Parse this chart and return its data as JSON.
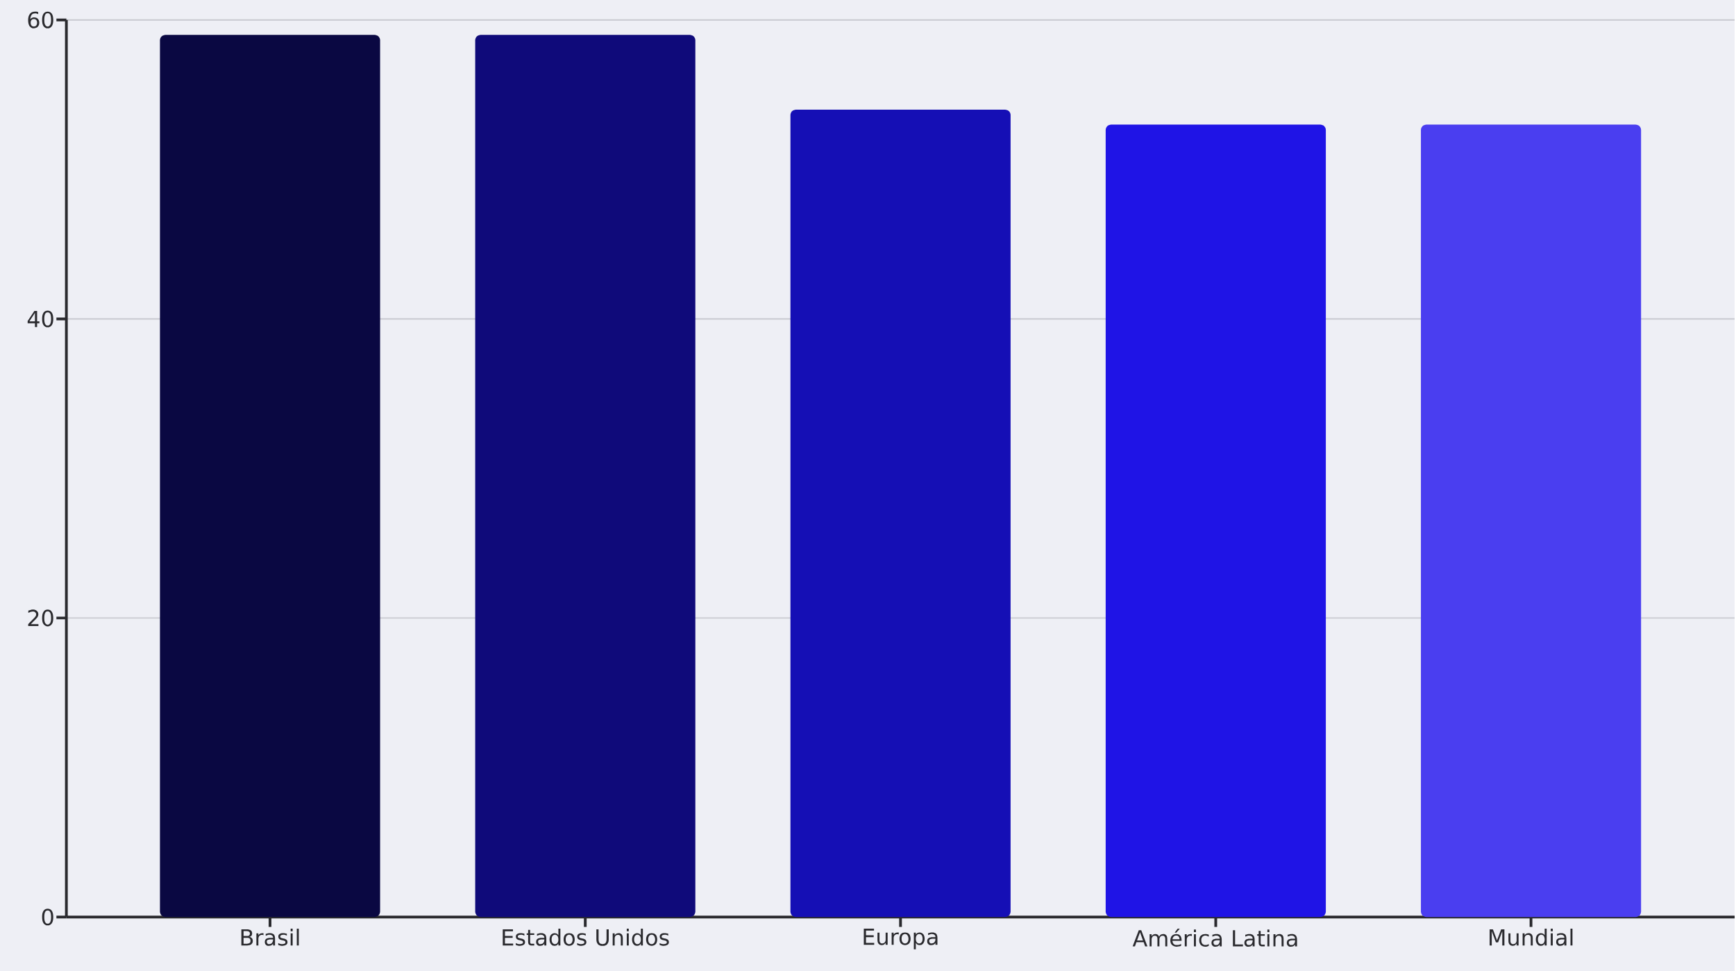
{
  "chart_data": {
    "type": "bar",
    "categories": [
      "Brasil",
      "Estados Unidos",
      "Europa",
      "América Latina",
      "Mundial"
    ],
    "values": [
      59,
      59,
      54,
      53,
      53
    ],
    "colors": [
      "#0a0842",
      "#0f0a7a",
      "#150fb5",
      "#1f14e6",
      "#4a3ef0"
    ],
    "ylim": [
      0,
      60
    ],
    "yticks": [
      0,
      20,
      40,
      60
    ],
    "grid": "y"
  }
}
